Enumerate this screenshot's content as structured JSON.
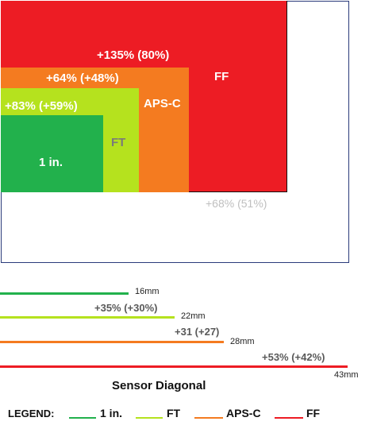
{
  "colors": {
    "ff": "#ed1c24",
    "apsc": "#f47b20",
    "ft": "#b5e21e",
    "one": "#22b14c",
    "grey": "#bfbfbf",
    "dark_grey": "#595959",
    "white": "#ffffff"
  },
  "rects": {
    "ff_label": "FF",
    "apsc_label": "APS-C",
    "ft_label": "FT",
    "one_label": "1 in.",
    "ff_vs_apsc": "+135% (80%)",
    "apsc_vs_ft": "+64% (+48%)",
    "ft_vs_one": "+83% (+59%)",
    "ff_vs_apsc_outside": "+68% (51%)"
  },
  "diagonals": {
    "items": [
      {
        "key": "one",
        "mm": "16mm",
        "diff": ""
      },
      {
        "key": "ft",
        "mm": "22mm",
        "diff": "+35% (+30%)"
      },
      {
        "key": "apsc",
        "mm": "28mm",
        "diff": "+31 (+27)"
      },
      {
        "key": "ff",
        "mm": "43mm",
        "diff": "+53% (+42%)"
      }
    ],
    "title": "Sensor Diagonal"
  },
  "legend": {
    "label": "LEGEND:",
    "items": [
      {
        "key": "one",
        "text": "1 in."
      },
      {
        "key": "ft",
        "text": "FT"
      },
      {
        "key": "apsc",
        "text": "APS-C"
      },
      {
        "key": "ff",
        "text": "FF"
      }
    ]
  }
}
